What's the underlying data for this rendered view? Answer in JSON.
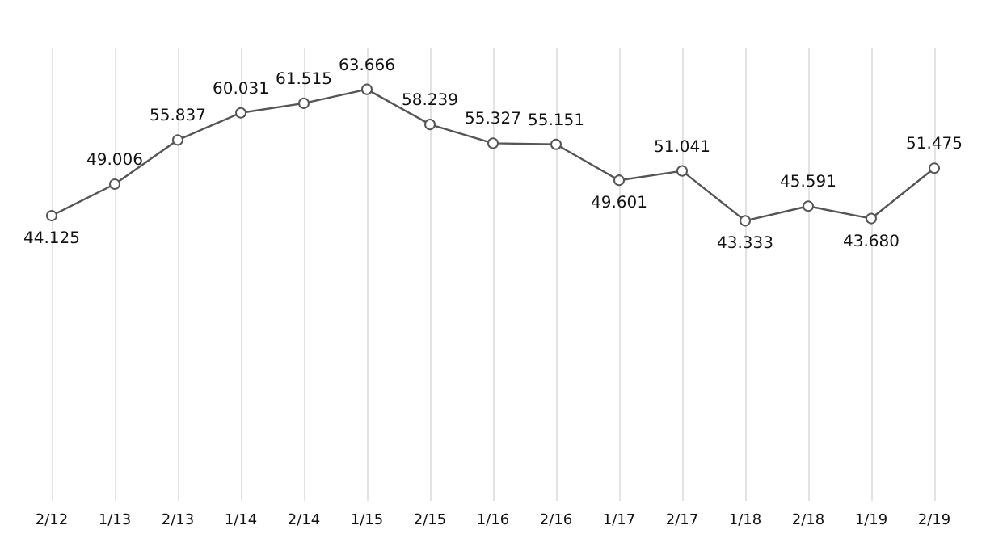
{
  "chart_data": {
    "type": "line",
    "categories": [
      "2/12",
      "1/13",
      "2/13",
      "1/14",
      "2/14",
      "1/15",
      "2/15",
      "1/16",
      "2/16",
      "1/17",
      "2/17",
      "1/18",
      "2/18",
      "1/19",
      "2/19"
    ],
    "series": [
      {
        "color": "#555555",
        "values": [
          44.125,
          49.006,
          55.837,
          60.031,
          61.515,
          63.666,
          58.239,
          55.327,
          55.151,
          49.601,
          51.041,
          43.333,
          45.591,
          43.68,
          51.475
        ],
        "value_labels": [
          "44.125",
          "49.006",
          "55.837",
          "60.031",
          "61.515",
          "63.666",
          "58.239",
          "55.327",
          "55.151",
          "49.601",
          "51.041",
          "43.333",
          "45.591",
          "43.680",
          "51.475"
        ]
      }
    ],
    "grid": "x",
    "marker": "circle",
    "line_style": "solid",
    "tick_labels": "x"
  }
}
